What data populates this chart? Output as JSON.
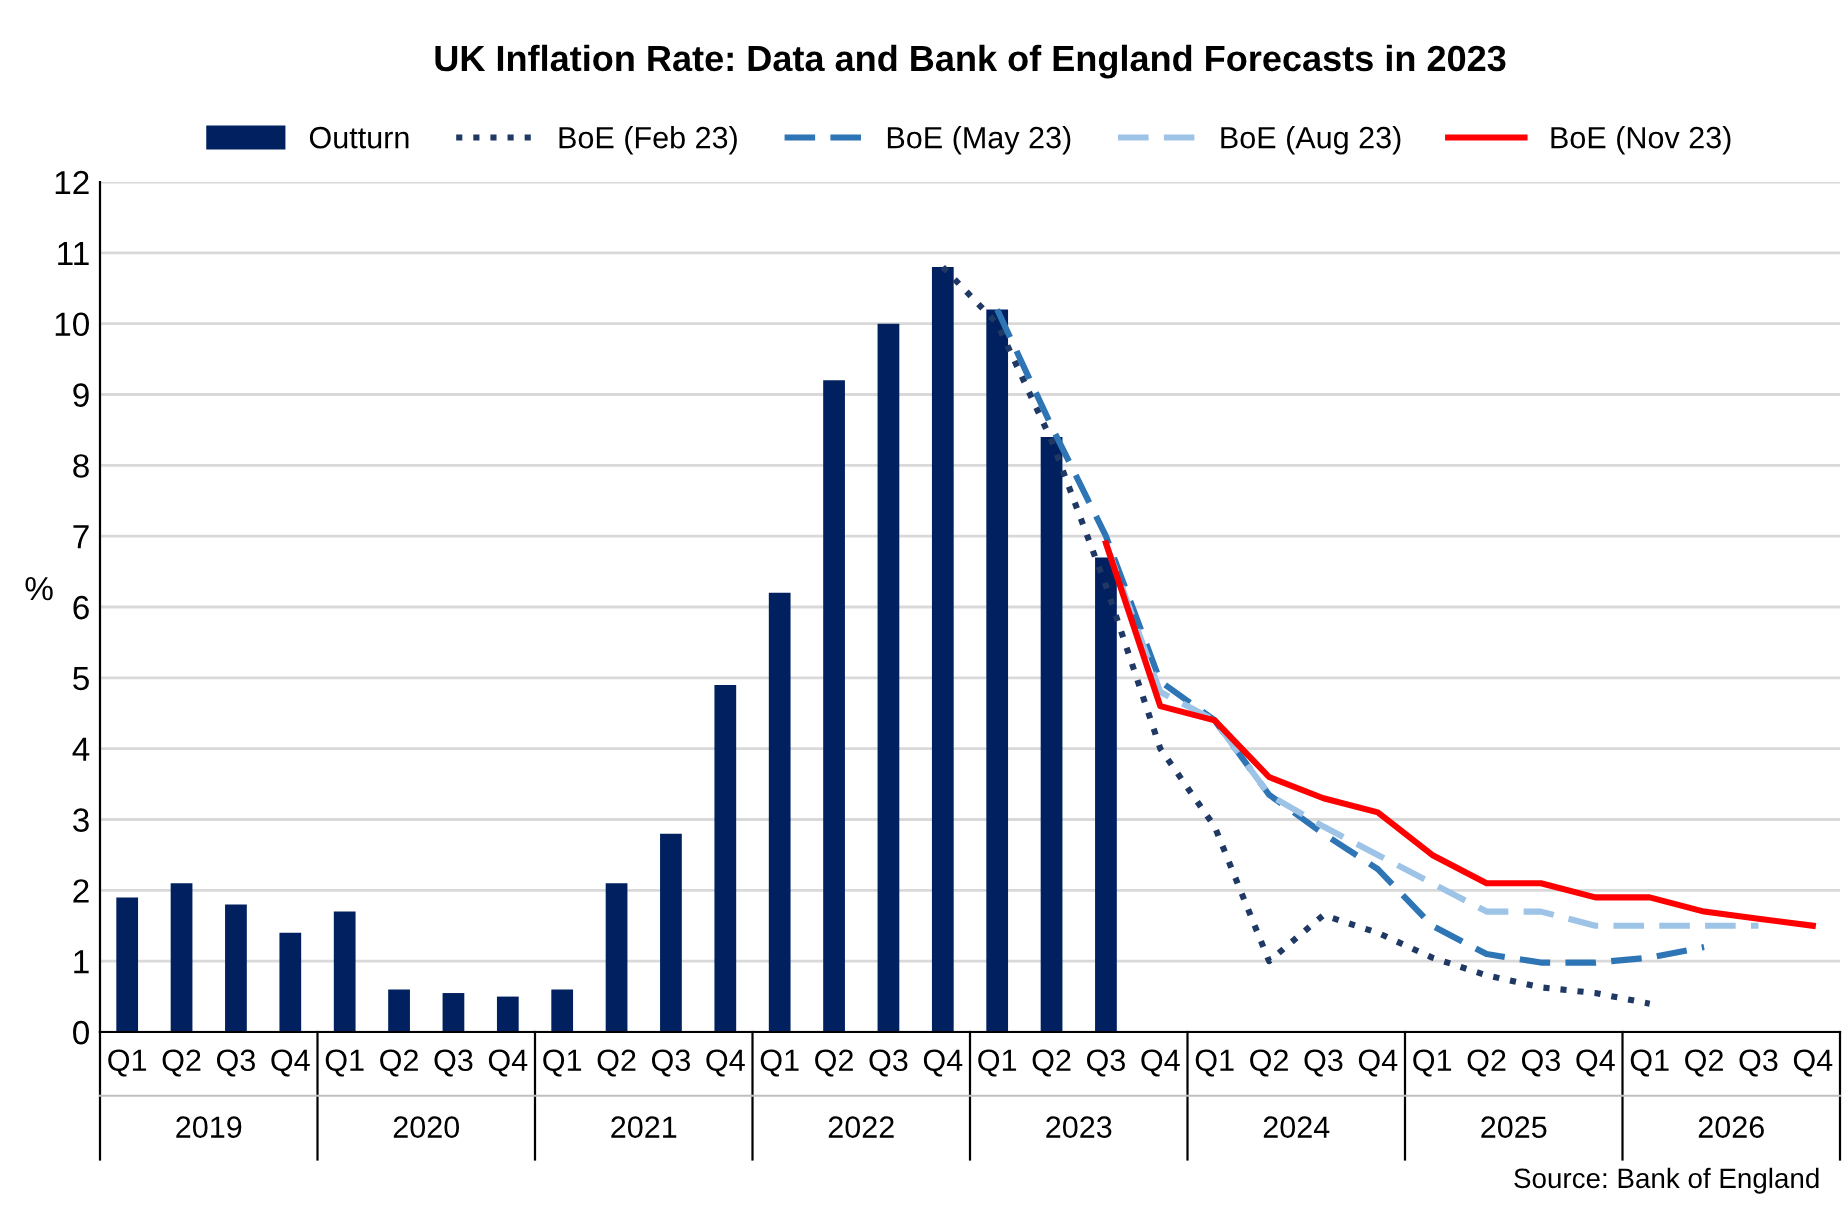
{
  "chart_data": {
    "type": "bar",
    "title": "UK Inflation Rate: Data and Bank of England Forecasts in 2023",
    "ylabel": "%",
    "categories": [
      "Q1",
      "Q2",
      "Q3",
      "Q4",
      "Q1",
      "Q2",
      "Q3",
      "Q4",
      "Q1",
      "Q2",
      "Q3",
      "Q4",
      "Q1",
      "Q2",
      "Q3",
      "Q4",
      "Q1",
      "Q2",
      "Q3",
      "Q4",
      "Q1",
      "Q2",
      "Q3",
      "Q4",
      "Q1",
      "Q2",
      "Q3",
      "Q4",
      "Q1",
      "Q2",
      "Q3",
      "Q4"
    ],
    "series": [
      {
        "name": "Outturn",
        "color": "#002060",
        "values": [
          1.9,
          2.1,
          1.8,
          1.4,
          1.7,
          0.6,
          0.55,
          0.5,
          0.6,
          2.1,
          2.8,
          4.9,
          6.2,
          9.2,
          10.0,
          10.8,
          10.2,
          8.4,
          6.7,
          null,
          null,
          null,
          null,
          null,
          null,
          null,
          null,
          null,
          null,
          null,
          null,
          null
        ]
      },
      {
        "name": "BoE (Feb 23)",
        "type": "line",
        "color": "#1f3864",
        "line_style": "dotted",
        "values": [
          null,
          null,
          null,
          null,
          null,
          null,
          null,
          null,
          null,
          null,
          null,
          null,
          null,
          null,
          null,
          10.8,
          10.0,
          8.35,
          6.3,
          4.0,
          2.9,
          1.0,
          1.65,
          1.4,
          1.05,
          0.8,
          0.63,
          0.55,
          0.4,
          null,
          null,
          null
        ]
      },
      {
        "name": "BoE (May 23)",
        "type": "line",
        "color": "#2e75b6",
        "line_style": "dashed",
        "values": [
          null,
          null,
          null,
          null,
          null,
          null,
          null,
          null,
          null,
          null,
          null,
          null,
          null,
          null,
          null,
          null,
          10.2,
          8.55,
          7.0,
          4.95,
          4.4,
          3.35,
          2.8,
          2.3,
          1.5,
          1.1,
          0.98,
          0.98,
          1.05,
          1.2,
          null,
          null
        ]
      },
      {
        "name": "BoE (Aug 23)",
        "type": "line",
        "color": "#9dc3e6",
        "line_style": "dashed",
        "values": [
          null,
          null,
          null,
          null,
          null,
          null,
          null,
          null,
          null,
          null,
          null,
          null,
          null,
          null,
          null,
          null,
          null,
          null,
          6.9,
          4.8,
          4.4,
          3.35,
          2.9,
          2.5,
          2.1,
          1.7,
          1.7,
          1.5,
          1.5,
          1.5,
          1.5,
          null
        ]
      },
      {
        "name": "BoE (Nov 23)",
        "type": "line",
        "color": "#ff0000",
        "line_style": "solid",
        "values": [
          null,
          null,
          null,
          null,
          null,
          null,
          null,
          null,
          null,
          null,
          null,
          null,
          null,
          null,
          null,
          null,
          null,
          null,
          6.9,
          4.6,
          4.4,
          3.6,
          3.3,
          3.1,
          2.5,
          2.1,
          2.1,
          1.9,
          1.9,
          1.7,
          1.6,
          1.5
        ]
      }
    ],
    "ylim": [
      0,
      12
    ],
    "yticks": [
      0,
      1,
      2,
      3,
      4,
      5,
      6,
      7,
      8,
      9,
      10,
      11,
      12
    ],
    "grid": "y",
    "legend": "top",
    "annotations": [
      "2019",
      "2020",
      "2021",
      "2022",
      "2023",
      "2024",
      "2025",
      "2026",
      "Source: Bank of England"
    ]
  }
}
